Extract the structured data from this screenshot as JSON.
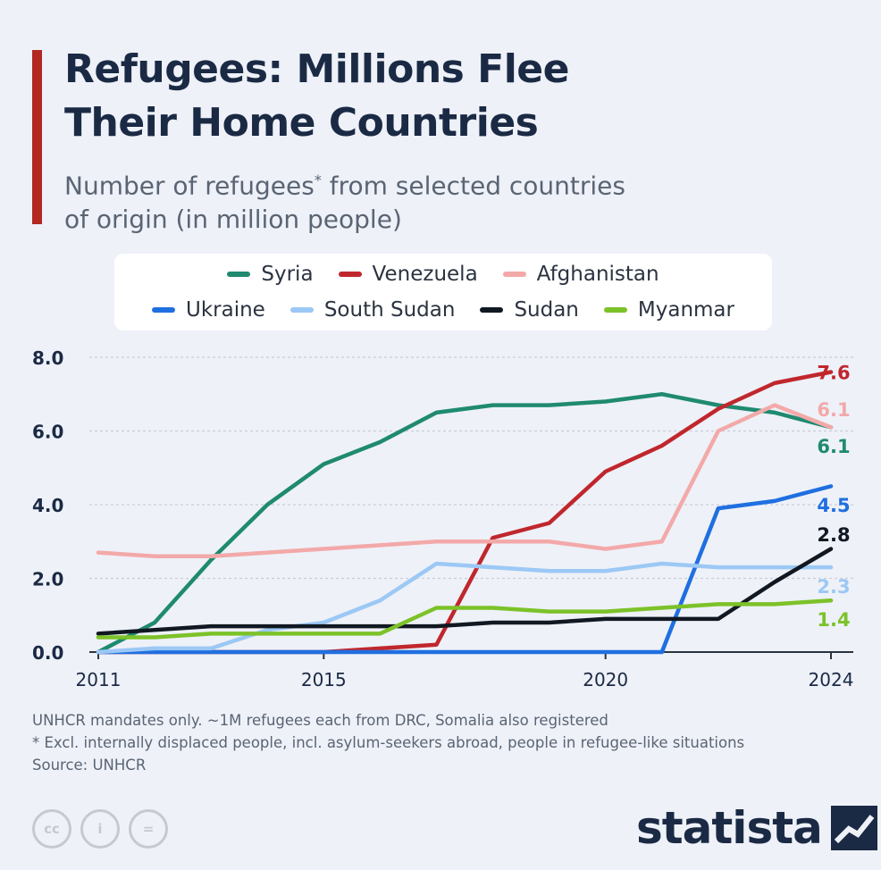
{
  "header": {
    "title": "Refugees: Millions Flee Their Home Countries",
    "subtitle_main": "Number of refugees",
    "subtitle_mark": "*",
    "subtitle_rest": " from selected countries of origin (in million people)",
    "accent_color": "#b32821"
  },
  "legend": {
    "row1": [
      {
        "name": "Syria",
        "color": "#1f8a70"
      },
      {
        "name": "Venezuela",
        "color": "#c0272d"
      },
      {
        "name": "Afghanistan",
        "color": "#f3a9a9"
      }
    ],
    "row2": [
      {
        "name": "Ukraine",
        "color": "#1f6fe0"
      },
      {
        "name": "South Sudan",
        "color": "#9cc8f5"
      },
      {
        "name": "Sudan",
        "color": "#111821"
      },
      {
        "name": "Myanmar",
        "color": "#7cc229"
      }
    ]
  },
  "chart_data": {
    "type": "line",
    "x": [
      2011,
      2012,
      2013,
      2014,
      2015,
      2016,
      2017,
      2018,
      2019,
      2020,
      2021,
      2022,
      2023,
      2024
    ],
    "xticks": [
      "2011",
      "2015",
      "2020",
      "2024"
    ],
    "yticks": [
      "0.0",
      "2.0",
      "4.0",
      "6.0",
      "8.0"
    ],
    "ylim": [
      0,
      8
    ],
    "grid": true,
    "series": [
      {
        "name": "Syria",
        "color": "#1f8a70",
        "values": [
          0.0,
          0.8,
          2.5,
          4.0,
          5.1,
          5.7,
          6.5,
          6.7,
          6.7,
          6.8,
          7.0,
          6.7,
          6.5,
          6.1
        ],
        "end_label": "6.1"
      },
      {
        "name": "Venezuela",
        "color": "#c0272d",
        "values": [
          0.0,
          0.0,
          0.0,
          0.0,
          0.0,
          0.1,
          0.2,
          3.1,
          3.5,
          4.9,
          5.6,
          6.6,
          7.3,
          7.6
        ],
        "end_label": "7.6"
      },
      {
        "name": "Afghanistan",
        "color": "#f3a9a9",
        "values": [
          2.7,
          2.6,
          2.6,
          2.7,
          2.8,
          2.9,
          3.0,
          3.0,
          3.0,
          2.8,
          3.0,
          6.0,
          6.7,
          6.1
        ],
        "end_label": "6.1"
      },
      {
        "name": "Ukraine",
        "color": "#1f6fe0",
        "values": [
          0.0,
          0.0,
          0.0,
          0.0,
          0.0,
          0.0,
          0.0,
          0.0,
          0.0,
          0.0,
          0.0,
          3.9,
          4.1,
          4.5
        ],
        "end_label": "4.5"
      },
      {
        "name": "South Sudan",
        "color": "#9cc8f5",
        "values": [
          0.0,
          0.1,
          0.1,
          0.6,
          0.8,
          1.4,
          2.4,
          2.3,
          2.2,
          2.2,
          2.4,
          2.3,
          2.3,
          2.3
        ],
        "end_label": "2.3"
      },
      {
        "name": "Sudan",
        "color": "#111821",
        "values": [
          0.5,
          0.6,
          0.7,
          0.7,
          0.7,
          0.7,
          0.7,
          0.8,
          0.8,
          0.9,
          0.9,
          0.9,
          1.9,
          2.8
        ],
        "end_label": "2.8"
      },
      {
        "name": "Myanmar",
        "color": "#7cc229",
        "values": [
          0.4,
          0.4,
          0.5,
          0.5,
          0.5,
          0.5,
          1.2,
          1.2,
          1.1,
          1.1,
          1.2,
          1.3,
          1.3,
          1.4
        ],
        "end_label": "1.4"
      }
    ]
  },
  "footer": {
    "note1": "UNHCR mandates only. ~1M refugees each from DRC, Somalia also registered",
    "note2": "* Excl. internally displaced people, incl. asylum-seekers abroad, people in refugee-like situations",
    "source": "Source: UNHCR",
    "brand": "statista",
    "cc_icons": [
      {
        "icon": "cc-icon",
        "text": "cc"
      },
      {
        "icon": "attribution-icon",
        "text": "i"
      },
      {
        "icon": "no-derivatives-icon",
        "text": "="
      }
    ]
  }
}
